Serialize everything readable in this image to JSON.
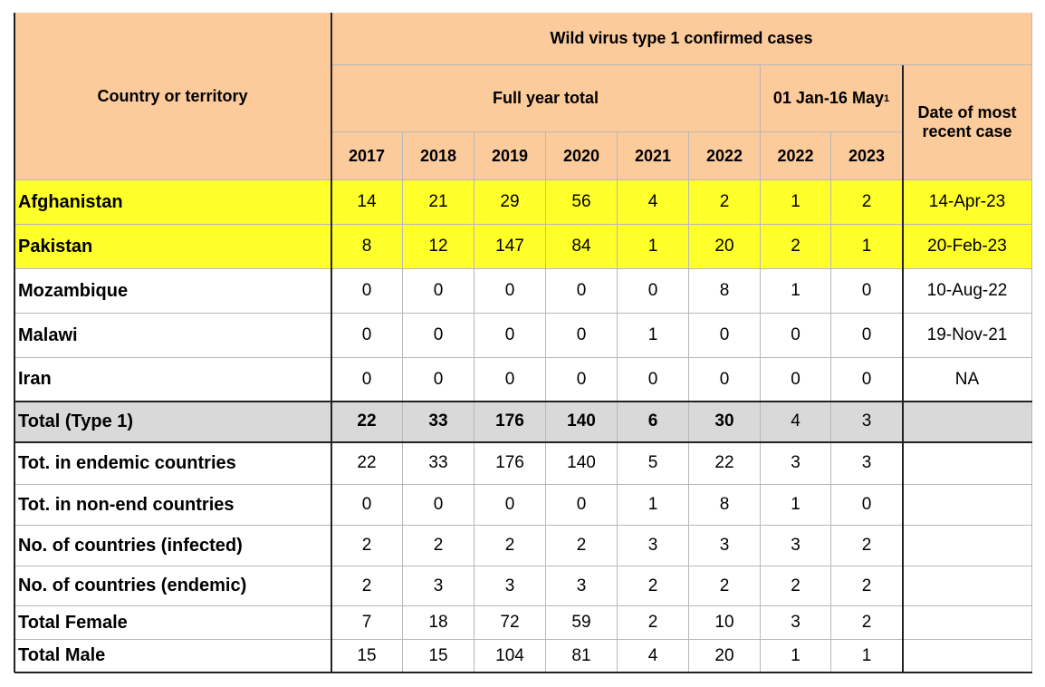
{
  "header": {
    "title": "Wild virus type 1 confirmed cases",
    "country": "Country or territory",
    "full_year": "Full year total",
    "partial": "01 Jan-16 May",
    "partial_note": "1",
    "date": "Date of most recent case",
    "years": [
      "2017",
      "2018",
      "2019",
      "2020",
      "2021",
      "2022",
      "2022",
      "2023"
    ]
  },
  "table": {
    "rows": [
      {
        "name": "Afghanistan",
        "values": [
          14,
          21,
          29,
          56,
          4,
          2,
          1,
          2
        ],
        "date": "14-Apr-23"
      },
      {
        "name": "Pakistan",
        "values": [
          8,
          12,
          147,
          84,
          1,
          20,
          2,
          1
        ],
        "date": "20-Feb-23"
      },
      {
        "name": "Mozambique",
        "values": [
          0,
          0,
          0,
          0,
          0,
          8,
          1,
          0
        ],
        "date": "10-Aug-22"
      },
      {
        "name": "Malawi",
        "values": [
          0,
          0,
          0,
          0,
          1,
          0,
          0,
          0
        ],
        "date": "19-Nov-21"
      },
      {
        "name": "Iran",
        "values": [
          0,
          0,
          0,
          0,
          0,
          0,
          0,
          0
        ],
        "date": "NA"
      },
      {
        "name": "Total (Type 1)",
        "values": [
          22,
          33,
          176,
          140,
          6,
          30,
          4,
          3
        ]
      },
      {
        "name": "Tot. in endemic countries",
        "values": [
          22,
          33,
          176,
          140,
          5,
          22,
          3,
          3
        ]
      },
      {
        "name": "Tot. in non-end countries",
        "values": [
          0,
          0,
          0,
          0,
          1,
          8,
          1,
          0
        ]
      },
      {
        "name": "No. of countries (infected)",
        "values": [
          2,
          2,
          2,
          2,
          3,
          3,
          3,
          2
        ]
      },
      {
        "name": "No. of countries (endemic)",
        "values": [
          2,
          3,
          3,
          3,
          2,
          2,
          2,
          2
        ]
      },
      {
        "name": "Total Female",
        "values": [
          7,
          18,
          72,
          59,
          2,
          10,
          3,
          2
        ]
      },
      {
        "name": "Total Male",
        "values": [
          15,
          15,
          104,
          81,
          4,
          20,
          1,
          1
        ]
      }
    ]
  }
}
